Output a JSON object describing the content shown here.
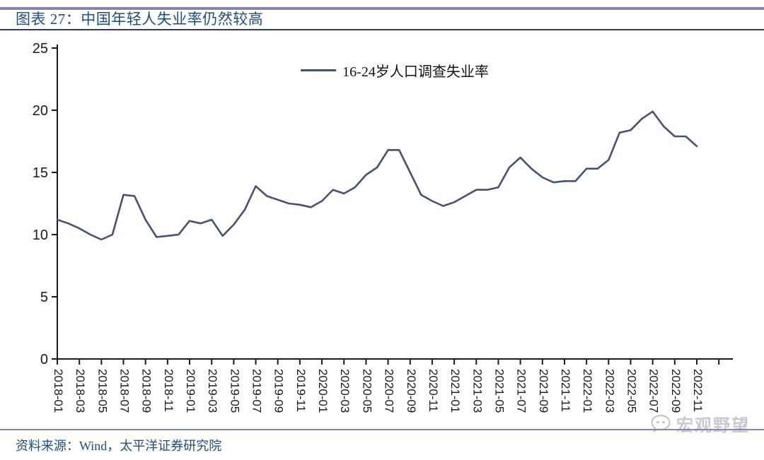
{
  "header": {
    "title": "图表 27：中国年轻人失业率仍然较高"
  },
  "footer": {
    "source": "资料来源：Wind，太平洋证券研究院"
  },
  "watermark": {
    "label": "宏观野望",
    "icon": "wechat-bubble-icon"
  },
  "colors": {
    "line": "#46536f",
    "title_text": "#1f4e79",
    "rule_light": "#8185b2",
    "rule_dark": "#32357e",
    "axis": "#1a1a1a",
    "watermark": "#c6c9d2"
  },
  "chart_data": {
    "type": "line",
    "title": "",
    "legend": [
      "16-24岁人口调查失业率"
    ],
    "legend_position": "top-center",
    "grid": false,
    "ylim": [
      0,
      25
    ],
    "yticks": [
      0,
      5,
      10,
      15,
      20,
      25
    ],
    "xtick_label_every": 2,
    "x": [
      "2018-01",
      "2018-02",
      "2018-03",
      "2018-04",
      "2018-05",
      "2018-06",
      "2018-07",
      "2018-08",
      "2018-09",
      "2018-10",
      "2018-11",
      "2018-12",
      "2019-01",
      "2019-02",
      "2019-03",
      "2019-04",
      "2019-05",
      "2019-06",
      "2019-07",
      "2019-08",
      "2019-09",
      "2019-10",
      "2019-11",
      "2019-12",
      "2020-01",
      "2020-02",
      "2020-03",
      "2020-04",
      "2020-05",
      "2020-06",
      "2020-07",
      "2020-08",
      "2020-09",
      "2020-10",
      "2020-11",
      "2020-12",
      "2021-01",
      "2021-02",
      "2021-03",
      "2021-04",
      "2021-05",
      "2021-06",
      "2021-07",
      "2021-08",
      "2021-09",
      "2021-10",
      "2021-11",
      "2021-12",
      "2022-01",
      "2022-02",
      "2022-03",
      "2022-04",
      "2022-05",
      "2022-06",
      "2022-07",
      "2022-08",
      "2022-09",
      "2022-10",
      "2022-11"
    ],
    "series": [
      {
        "name": "16-24岁人口调查失业率",
        "values": [
          11.2,
          10.9,
          10.5,
          10.0,
          9.6,
          10.0,
          13.2,
          13.1,
          11.2,
          9.8,
          9.9,
          10.0,
          11.1,
          10.9,
          11.2,
          9.9,
          10.8,
          12.0,
          13.9,
          13.1,
          12.8,
          12.5,
          12.4,
          12.2,
          12.7,
          13.6,
          13.3,
          13.8,
          14.8,
          15.4,
          16.8,
          16.8,
          15.0,
          13.2,
          12.7,
          12.3,
          12.6,
          13.1,
          13.6,
          13.6,
          13.8,
          15.4,
          16.2,
          15.3,
          14.6,
          14.2,
          14.3,
          14.3,
          15.3,
          15.3,
          16.0,
          18.2,
          18.4,
          19.3,
          19.9,
          18.7,
          17.9,
          17.9,
          17.1
        ]
      }
    ]
  }
}
